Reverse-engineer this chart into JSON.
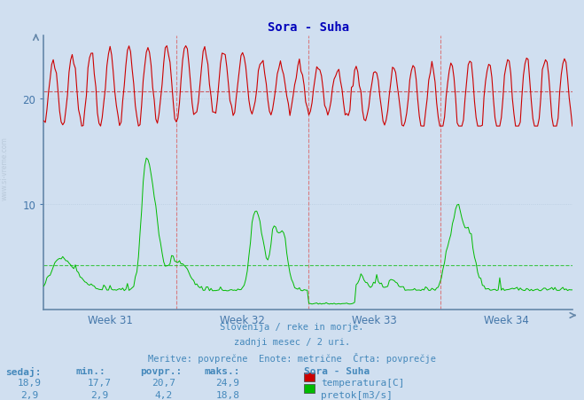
{
  "title": "Sora - Suha",
  "bg_color": "#d0dff0",
  "plot_bg_color": "#d0dff0",
  "x_weeks": [
    "Week 31",
    "Week 32",
    "Week 33",
    "Week 34"
  ],
  "ylim": [
    0,
    26
  ],
  "temp_min": 17.7,
  "temp_max": 24.9,
  "temp_avg": 20.7,
  "temp_color": "#cc0000",
  "flow_color": "#00bb00",
  "flow_avg": 4.2,
  "flow_max": 18.8,
  "footer_line1": "Slovenija / reke in morje.",
  "footer_line2": "zadnji mesec / 2 uri.",
  "footer_line3": "Meritve: povprečne  Enote: metrične  Črta: povprečje",
  "footer_color": "#4488bb",
  "title_color": "#0000bb",
  "axis_color": "#6688aa",
  "tick_color": "#4477aa",
  "grid_color": "#b8cce0",
  "table_headers": [
    "sedaj:",
    "min.:",
    "povpr.:",
    "maks.:"
  ],
  "table_values_temp": [
    "18,9",
    "17,7",
    "20,7",
    "24,9"
  ],
  "table_values_flow": [
    "2,9",
    "2,9",
    "4,2",
    "18,8"
  ],
  "legend_label_temp": "temperatura[C]",
  "legend_label_flow": "pretok[m3/s]",
  "legend_title": "Sora - Suha",
  "table_color": "#4488bb",
  "n_days": 28,
  "samples_per_day": 12
}
